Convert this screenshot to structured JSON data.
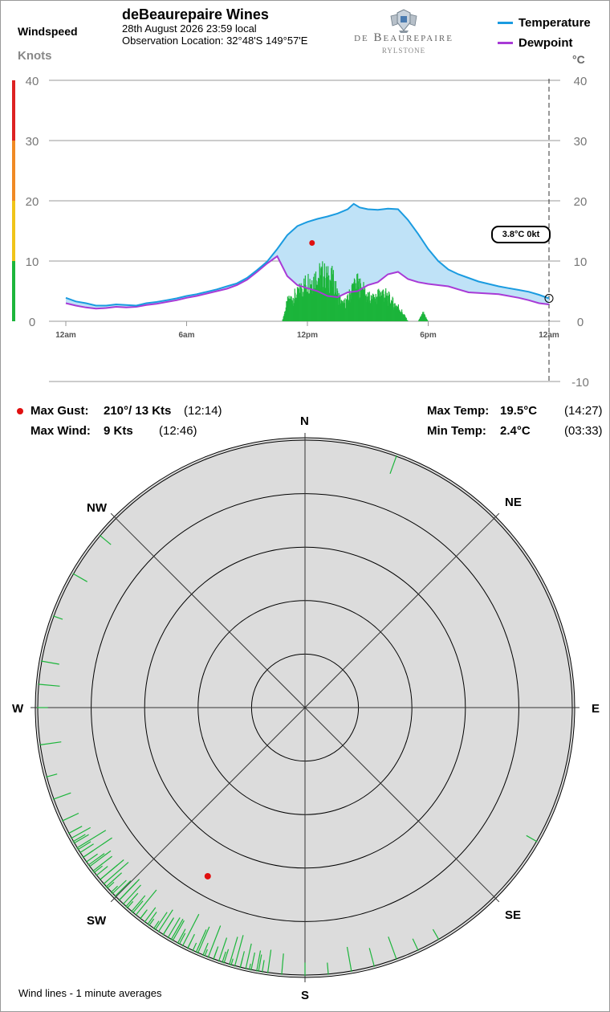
{
  "header": {
    "title": "deBeaurepaire Wines",
    "datetime": "28th August 2026  23:59 local",
    "location": "Observation Location: 32°48'S 149°57'E"
  },
  "logo": {
    "line1": "de Beaurepaire",
    "line2": "RYLSTONE"
  },
  "left_axis": {
    "title": "Windspeed",
    "unit": "Knots"
  },
  "right_axis": {
    "unit": "°C"
  },
  "legend": {
    "temperature": "Temperature",
    "dewpoint": "Dewpoint"
  },
  "colors": {
    "temperature": "#1a9be0",
    "temperature_fill": "#bfe2f7",
    "dewpoint": "#a83ad6",
    "wind": "#1cb53b",
    "gust_marker": "#e01010",
    "scale_green": "#1cb53b",
    "scale_yellow": "#f0c419",
    "scale_orange": "#f08a24",
    "scale_red": "#dd2222"
  },
  "current_label": "3.8°C  0kt",
  "stats": {
    "max_gust_label": "Max Gust:",
    "max_gust_value": "210°/  13 Kts",
    "max_gust_time": "(12:14)",
    "max_wind_label": "Max Wind:",
    "max_wind_value": "9 Kts",
    "max_wind_time": "(12:46)",
    "max_temp_label": "Max Temp:",
    "max_temp_value": "19.5°C",
    "max_temp_time": "(14:27)",
    "min_temp_label": "Min Temp:",
    "min_temp_value": "2.4°C",
    "min_temp_time": "(03:33)"
  },
  "compass": {
    "N": "N",
    "NE": "NE",
    "E": "E",
    "SE": "SE",
    "S": "S",
    "SW": "SW",
    "W": "W",
    "NW": "NW"
  },
  "footer_note": "Wind lines - 1 minute averages",
  "chart_data": [
    {
      "type": "line",
      "x_ticks": [
        "12am",
        "6am",
        "12pm",
        "6pm",
        "12am"
      ],
      "x_hours": [
        0,
        6,
        12,
        18,
        24
      ],
      "left_ticks": [
        0,
        10,
        20,
        30,
        40
      ],
      "right_ticks": [
        40,
        30,
        20,
        10,
        0,
        -10
      ],
      "left_ylim": [
        0,
        40
      ],
      "right_ylim": [
        -10,
        40
      ],
      "series": [
        {
          "name": "Temperature",
          "x": [
            0,
            0.5,
            1,
            1.5,
            2,
            2.5,
            3,
            3.5,
            4,
            4.5,
            5,
            5.5,
            6,
            6.5,
            7,
            7.5,
            8,
            8.5,
            9,
            9.5,
            10,
            10.5,
            11,
            11.5,
            12,
            12.5,
            13,
            13.5,
            14,
            14.3,
            14.6,
            15,
            15.5,
            16,
            16.5,
            17,
            17.5,
            18,
            18.5,
            19,
            19.5,
            20,
            20.5,
            21,
            21.5,
            22,
            22.5,
            23,
            23.5,
            24
          ],
          "y": [
            3.9,
            3.3,
            3.0,
            2.6,
            2.6,
            2.8,
            2.7,
            2.6,
            3.0,
            3.2,
            3.5,
            3.8,
            4.2,
            4.5,
            4.9,
            5.3,
            5.8,
            6.3,
            7.2,
            8.5,
            9.9,
            12.0,
            14.3,
            15.8,
            16.5,
            17.0,
            17.4,
            17.9,
            18.6,
            19.5,
            18.9,
            18.6,
            18.5,
            18.7,
            18.6,
            16.8,
            14.5,
            12.0,
            10.0,
            8.6,
            7.8,
            7.2,
            6.6,
            6.2,
            5.8,
            5.5,
            5.2,
            4.9,
            4.4,
            3.8
          ]
        },
        {
          "name": "Dewpoint",
          "x": [
            0,
            0.5,
            1,
            1.5,
            2,
            2.5,
            3,
            3.5,
            4,
            4.5,
            5,
            5.5,
            6,
            6.5,
            7,
            7.5,
            8,
            8.5,
            9,
            9.5,
            10,
            10.5,
            11,
            11.5,
            12,
            12.5,
            13,
            13.5,
            14,
            14.5,
            15,
            15.5,
            16,
            16.5,
            17,
            17.5,
            18,
            18.5,
            19,
            19.5,
            20,
            20.5,
            21,
            21.5,
            22,
            22.5,
            23,
            23.5,
            24
          ],
          "y": [
            3.0,
            2.6,
            2.3,
            2.1,
            2.2,
            2.4,
            2.3,
            2.4,
            2.7,
            2.9,
            3.2,
            3.5,
            3.9,
            4.2,
            4.6,
            5.0,
            5.4,
            6.0,
            6.9,
            8.2,
            9.6,
            10.8,
            7.5,
            6.0,
            5.5,
            5.0,
            4.2,
            4.0,
            4.8,
            5.0,
            6.0,
            6.5,
            7.8,
            8.2,
            7.0,
            6.5,
            6.2,
            6.0,
            5.8,
            5.3,
            4.8,
            4.7,
            4.6,
            4.5,
            4.2,
            3.9,
            3.5,
            3.0,
            2.8
          ]
        }
      ],
      "wind_avg": {
        "name": "Windspeed",
        "x": [
          10.75,
          11,
          11.25,
          11.5,
          11.75,
          12,
          12.25,
          12.5,
          12.75,
          13,
          13.25,
          13.5,
          13.75,
          14,
          14.25,
          14.5,
          14.75,
          15,
          15.25,
          15.5,
          15.75,
          16,
          16.25,
          16.5,
          16.75,
          17,
          17.25,
          17.5,
          17.75,
          18,
          18.25
        ],
        "y": [
          0,
          3.5,
          4.5,
          5.0,
          6.5,
          7.5,
          8.0,
          8.5,
          9.0,
          8.2,
          8.0,
          5.0,
          3.0,
          4.0,
          6.5,
          7.0,
          6.0,
          4.5,
          4.0,
          5.0,
          5.5,
          4.5,
          3.5,
          2.8,
          1.5,
          0,
          0,
          0,
          1.5,
          0,
          0
        ]
      },
      "max_gust_point": {
        "hour": 12.23,
        "knots": 13
      },
      "current": {
        "temp_c": 3.8,
        "wind_kt": 0
      }
    },
    {
      "type": "scatter",
      "name": "Wind direction (polar)",
      "rings_kts": [
        2,
        4,
        6,
        8,
        10
      ],
      "max_gust": {
        "direction_deg": 210,
        "knots": 13
      },
      "direction_samples_deg": [
        192,
        194,
        196,
        198,
        200,
        202,
        204,
        206,
        208,
        210,
        212,
        214,
        216,
        218,
        220,
        222,
        224,
        226,
        228,
        230,
        232,
        234,
        236,
        238,
        240,
        150,
        155,
        160,
        165,
        170,
        175,
        180,
        185,
        190,
        245,
        250,
        255,
        262,
        270,
        275,
        280,
        290,
        300,
        310,
        20,
        120
      ]
    }
  ]
}
